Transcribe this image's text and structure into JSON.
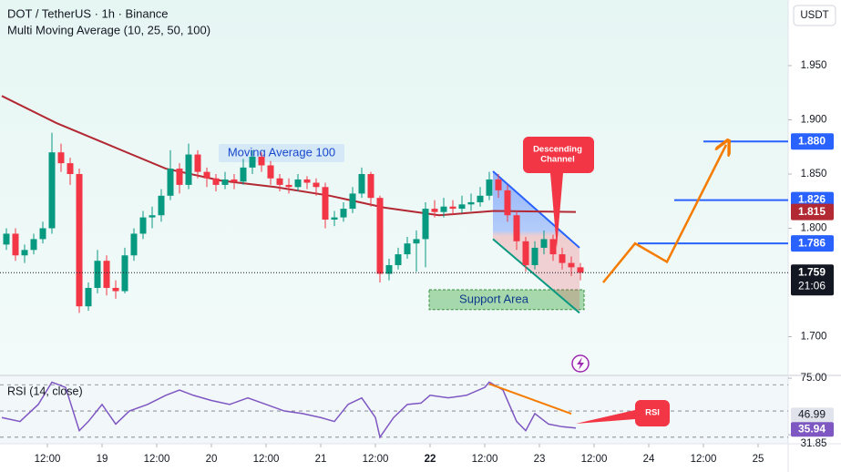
{
  "chart_data": {
    "type": "candlestick",
    "title": "DOT / TetherUS · 1h · Binance",
    "subtitle": "Multi Moving Average (10, 25, 50, 100)",
    "currency": "USDT",
    "up_color": "#089981",
    "down_color": "#f23645",
    "xlim": [
      -22.4,
      150.6
    ],
    "xticks": [
      {
        "value": -12,
        "label": "12:00"
      },
      {
        "value": 0,
        "label": "19"
      },
      {
        "value": 12,
        "label": "12:00"
      },
      {
        "value": 24,
        "label": "20"
      },
      {
        "value": 36,
        "label": "12:00"
      },
      {
        "value": 48,
        "label": "21"
      },
      {
        "value": 60,
        "label": "12:00"
      },
      {
        "value": 72,
        "label": "22",
        "bold": true
      },
      {
        "value": 84,
        "label": "12:00"
      },
      {
        "value": 96,
        "label": "23"
      },
      {
        "value": 108,
        "label": "12:00"
      },
      {
        "value": 120,
        "label": "24"
      },
      {
        "value": 132,
        "label": "12:00"
      },
      {
        "value": 144,
        "label": "25"
      }
    ],
    "ylim": [
      1.6643,
      2.0105
    ],
    "yticks": [
      {
        "value": 1.95,
        "label": "1.950"
      },
      {
        "value": 1.9,
        "label": "1.900"
      },
      {
        "value": 1.85,
        "label": "1.850"
      },
      {
        "value": 1.8,
        "label": "1.800"
      },
      {
        "value": 1.7,
        "label": "1.700"
      }
    ],
    "x": [
      -21,
      -19,
      -17,
      -15,
      -13,
      -11,
      -9,
      -7,
      -5,
      -3,
      -1,
      1,
      3,
      5,
      7,
      9,
      11,
      13,
      15,
      17,
      19,
      21,
      23,
      25,
      27,
      29,
      31,
      33,
      35,
      37,
      39,
      41,
      43,
      45,
      47,
      49,
      51,
      53,
      55,
      57,
      59,
      61,
      63,
      65,
      67,
      69,
      71,
      73,
      75,
      77,
      79,
      81,
      83,
      85,
      87,
      89,
      91,
      93,
      95,
      97,
      99,
      101,
      103,
      105
    ],
    "candles": [
      [
        1.785,
        1.8,
        1.78,
        1.795
      ],
      [
        1.795,
        1.8,
        1.77,
        1.775
      ],
      [
        1.775,
        1.785,
        1.768,
        1.78
      ],
      [
        1.78,
        1.795,
        1.776,
        1.79
      ],
      [
        1.79,
        1.806,
        1.786,
        1.8
      ],
      [
        1.8,
        1.888,
        1.795,
        1.87
      ],
      [
        1.87,
        1.878,
        1.852,
        1.86
      ],
      [
        1.86,
        1.865,
        1.84,
        1.85
      ],
      [
        1.85,
        1.855,
        1.722,
        1.728
      ],
      [
        1.728,
        1.75,
        1.724,
        1.745
      ],
      [
        1.745,
        1.78,
        1.74,
        1.77
      ],
      [
        1.77,
        1.775,
        1.738,
        1.745
      ],
      [
        1.745,
        1.752,
        1.735,
        1.742
      ],
      [
        1.742,
        1.782,
        1.74,
        1.775
      ],
      [
        1.775,
        1.8,
        1.77,
        1.795
      ],
      [
        1.795,
        1.816,
        1.79,
        1.81
      ],
      [
        1.81,
        1.82,
        1.8,
        1.812
      ],
      [
        1.812,
        1.836,
        1.806,
        1.83
      ],
      [
        1.83,
        1.872,
        1.826,
        1.855
      ],
      [
        1.855,
        1.86,
        1.832,
        1.84
      ],
      [
        1.84,
        1.878,
        1.836,
        1.868
      ],
      [
        1.868,
        1.872,
        1.846,
        1.852
      ],
      [
        1.852,
        1.856,
        1.838,
        1.846
      ],
      [
        1.846,
        1.85,
        1.834,
        1.84
      ],
      [
        1.84,
        1.852,
        1.836,
        1.845
      ],
      [
        1.845,
        1.85,
        1.836,
        1.843
      ],
      [
        1.843,
        1.864,
        1.84,
        1.856
      ],
      [
        1.856,
        1.872,
        1.85,
        1.866
      ],
      [
        1.866,
        1.87,
        1.852,
        1.858
      ],
      [
        1.858,
        1.862,
        1.84,
        1.846
      ],
      [
        1.846,
        1.85,
        1.834,
        1.84
      ],
      [
        1.84,
        1.846,
        1.832,
        1.838
      ],
      [
        1.838,
        1.85,
        1.834,
        1.845
      ],
      [
        1.845,
        1.848,
        1.836,
        1.842
      ],
      [
        1.842,
        1.846,
        1.83,
        1.838
      ],
      [
        1.838,
        1.842,
        1.8,
        1.808
      ],
      [
        1.808,
        1.816,
        1.802,
        1.81
      ],
      [
        1.81,
        1.824,
        1.806,
        1.818
      ],
      [
        1.818,
        1.838,
        1.814,
        1.832
      ],
      [
        1.832,
        1.856,
        1.828,
        1.85
      ],
      [
        1.85,
        1.852,
        1.82,
        1.828
      ],
      [
        1.828,
        1.83,
        1.75,
        1.758
      ],
      [
        1.758,
        1.772,
        1.752,
        1.766
      ],
      [
        1.766,
        1.782,
        1.762,
        1.776
      ],
      [
        1.776,
        1.792,
        1.772,
        1.786
      ],
      [
        1.786,
        1.798,
        1.76,
        1.79
      ],
      [
        1.79,
        1.824,
        1.764,
        1.818
      ],
      [
        1.818,
        1.826,
        1.81,
        1.815
      ],
      [
        1.815,
        1.828,
        1.81,
        1.82
      ],
      [
        1.82,
        1.826,
        1.812,
        1.818
      ],
      [
        1.818,
        1.83,
        1.814,
        1.822
      ],
      [
        1.822,
        1.832,
        1.816,
        1.824
      ],
      [
        1.824,
        1.838,
        1.82,
        1.83
      ],
      [
        1.83,
        1.852,
        1.826,
        1.845
      ],
      [
        1.845,
        1.85,
        1.828,
        1.835
      ],
      [
        1.835,
        1.84,
        1.806,
        1.812
      ],
      [
        1.812,
        1.816,
        1.78,
        1.788
      ],
      [
        1.788,
        1.792,
        1.76,
        1.766
      ],
      [
        1.766,
        1.788,
        1.762,
        1.782
      ],
      [
        1.782,
        1.798,
        1.776,
        1.79
      ],
      [
        1.79,
        1.794,
        1.77,
        1.776
      ],
      [
        1.776,
        1.782,
        1.762,
        1.768
      ],
      [
        1.768,
        1.774,
        1.756,
        1.764
      ],
      [
        1.764,
        1.768,
        1.752,
        1.759
      ]
    ],
    "ma": {
      "name": "Moving Average 100",
      "color": "#b22833",
      "x": [
        -22,
        -10,
        2,
        14,
        26,
        38,
        50,
        62,
        74,
        86,
        104
      ],
      "values": [
        1.922,
        1.897,
        1.876,
        1.855,
        1.844,
        1.838,
        1.83,
        1.819,
        1.812,
        1.816,
        1.815
      ],
      "last": {
        "value": 1.815,
        "label": "1.815"
      }
    },
    "levels": [
      {
        "value": 1.88,
        "label": "1.880",
        "from": 132
      },
      {
        "value": 1.826,
        "label": "1.826",
        "from": 125.6
      },
      {
        "value": 1.786,
        "label": "1.786",
        "from": 117.6
      }
    ],
    "level_color": "#2962ff",
    "last_price": {
      "value": 1.759,
      "label": "1.759",
      "time": "21:06"
    },
    "projection": {
      "color": "#f57c00",
      "x": [
        110,
        117,
        124,
        137
      ],
      "values": [
        1.75,
        1.786,
        1.769,
        1.877
      ]
    },
    "channel": {
      "label": [
        "Descending",
        "Channel"
      ],
      "x": [
        85.8,
        104.8
      ],
      "upper": [
        1.8525,
        1.782
      ],
      "lower": [
        1.79,
        1.722
      ]
    },
    "support": {
      "label": "Support Area",
      "x": [
        71.8,
        105.8
      ],
      "range": [
        1.725,
        1.7433
      ]
    },
    "rsi": {
      "title": "RSI (14, close)",
      "color": "#7e57c2",
      "ylim": [
        25,
        77.14
      ],
      "x": [
        -22,
        -18,
        -14,
        -11,
        -8,
        -5,
        -3,
        0,
        3,
        6,
        10,
        14,
        17,
        20,
        24,
        28,
        32,
        36,
        40,
        44,
        48,
        51,
        54,
        57,
        60,
        61,
        64,
        67,
        70,
        72,
        76,
        80,
        84,
        85,
        88,
        91,
        93,
        95,
        98,
        101,
        104
      ],
      "values": [
        45,
        42,
        55,
        72,
        68,
        35,
        42,
        55,
        40,
        50,
        55,
        62,
        66,
        62,
        58,
        55,
        60,
        55,
        50,
        48,
        45,
        42,
        55,
        60,
        45,
        30,
        45,
        55,
        56,
        62,
        60,
        62,
        68,
        72,
        66,
        42,
        35,
        48,
        40,
        38,
        37
      ],
      "levels": [
        70,
        50,
        30
      ],
      "ticks": [
        {
          "value": 75,
          "label": "75.00"
        },
        {
          "value": 31.85,
          "label": "31.85"
        }
      ],
      "badges": [
        {
          "value": 46.99,
          "label": "46.99",
          "color": "#e0e3eb"
        },
        {
          "value": 35.94,
          "label": "35.94",
          "color": "#7e57c2"
        }
      ],
      "divergence": {
        "x": [
          85,
          103
        ],
        "values": [
          70.7,
          47.9
        ]
      },
      "callout": "RSI"
    }
  }
}
